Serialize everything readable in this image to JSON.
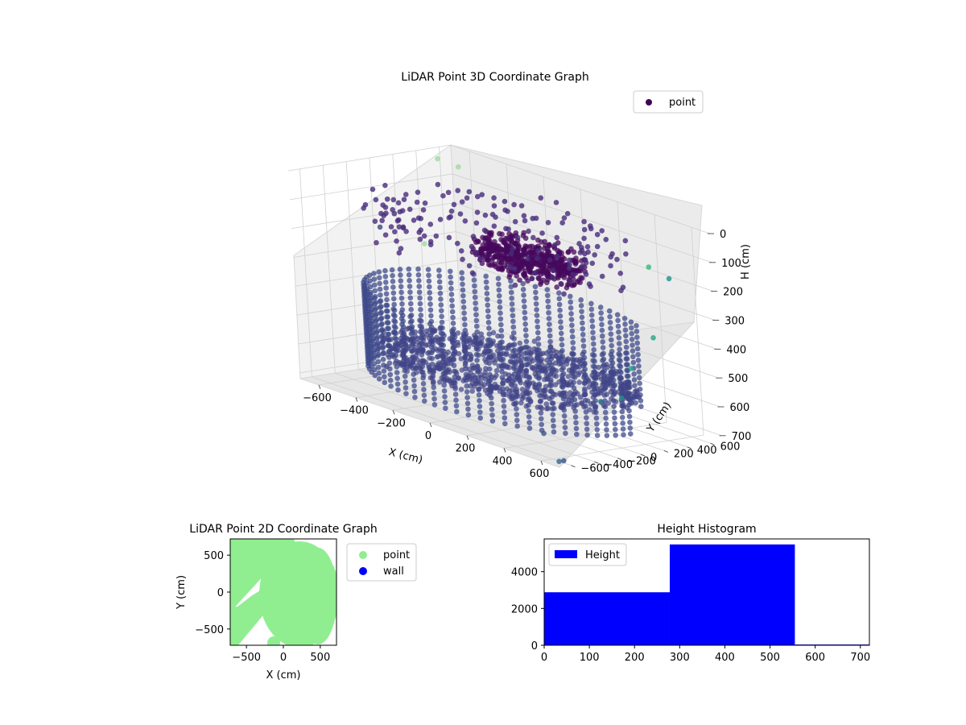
{
  "chart_data": [
    {
      "type": "scatter",
      "projection": "3d",
      "title": "LiDAR Point 3D Coordinate Graph",
      "xlabel": "X (cm)",
      "ylabel": "Y (cm)",
      "zlabel": "H (cm)",
      "xticks": [
        -600,
        -400,
        -200,
        0,
        200,
        400,
        600
      ],
      "yticks": [
        -600,
        -400,
        -200,
        0,
        200,
        400,
        600
      ],
      "zticks": [
        0,
        100,
        200,
        300,
        400,
        500,
        600,
        700
      ],
      "xlim": [
        -700,
        700
      ],
      "ylim": [
        -700,
        700
      ],
      "zlim": [
        0,
        720
      ],
      "z_inverted": true,
      "colormap": "viridis",
      "grid": true,
      "legend": "top-right",
      "series": [
        {
          "name": "point",
          "marker_color": "#440154",
          "groups": [
            {
              "shape": "wall_ring",
              "radius": 650,
              "z_range": [
                380,
                660
              ],
              "color": "#3e4a89"
            },
            {
              "shape": "floor_disc",
              "radius": 600,
              "z": 560,
              "color": "#414487"
            },
            {
              "shape": "ceiling_blob",
              "center": [
                80,
                100
              ],
              "radius": 260,
              "z": 160,
              "color": "#46085c"
            },
            {
              "shape": "outer_ring_upper",
              "radius": 640,
              "z_range": [
                60,
                200
              ],
              "color": "#472c7a"
            }
          ],
          "outliers": [
            {
              "x": -700,
              "y": 580,
              "z": 40,
              "color": "#a0da9f"
            },
            {
              "x": -640,
              "y": 660,
              "z": 60,
              "color": "#a0da9f"
            },
            {
              "x": -690,
              "y": 40,
              "z": 240,
              "color": "#414487"
            },
            {
              "x": -560,
              "y": 210,
              "z": 280,
              "color": "#a0da9f"
            },
            {
              "x": 390,
              "y": 640,
              "z": 180,
              "color": "#35b779"
            },
            {
              "x": 550,
              "y": 560,
              "z": 180,
              "color": "#21918c"
            },
            {
              "x": 690,
              "y": 180,
              "z": 330,
              "color": "#22a884"
            },
            {
              "x": 700,
              "y": -40,
              "z": 420,
              "color": "#22a884"
            },
            {
              "x": 690,
              "y": -120,
              "z": 520,
              "color": "#21918c"
            },
            {
              "x": 690,
              "y": -300,
              "z": 520,
              "color": "#2a788e"
            },
            {
              "x": 560,
              "y": -600,
              "z": 640,
              "color": "#3b528b"
            },
            {
              "x": 700,
              "y": -660,
              "z": 700,
              "color": "#3b528b"
            },
            {
              "x": 700,
              "y": -700,
              "z": 700,
              "color": "#31688e"
            },
            {
              "x": -620,
              "y": -80,
              "z": 700,
              "color": "#414487"
            }
          ]
        }
      ]
    },
    {
      "type": "scatter",
      "title": "LiDAR Point 2D Coordinate Graph",
      "xlabel": "X (cm)",
      "ylabel": "Y (cm)",
      "xticks": [
        -500,
        0,
        500
      ],
      "yticks": [
        -500,
        0,
        500
      ],
      "xlim": [
        -720,
        720
      ],
      "ylim": [
        -720,
        720
      ],
      "legend": "outside-right",
      "series": [
        {
          "name": "point",
          "color": "#90ee90"
        },
        {
          "name": "wall",
          "color": "#0000ff"
        }
      ]
    },
    {
      "type": "bar",
      "subtype": "histogram",
      "title": "Height Histogram",
      "xticks": [
        0,
        100,
        200,
        300,
        400,
        500,
        600,
        700
      ],
      "yticks": [
        0,
        2000,
        4000
      ],
      "xlim": [
        0,
        720
      ],
      "ylim": [
        0,
        5780
      ],
      "legend": "top-left",
      "series": [
        {
          "name": "Height",
          "color": "#0000ff",
          "bins": [
            {
              "x0": 0,
              "x1": 278,
              "count": 2880
            },
            {
              "x0": 278,
              "x1": 555,
              "count": 5480
            },
            {
              "x0": 555,
              "x1": 720,
              "count": 40
            }
          ]
        }
      ]
    }
  ]
}
